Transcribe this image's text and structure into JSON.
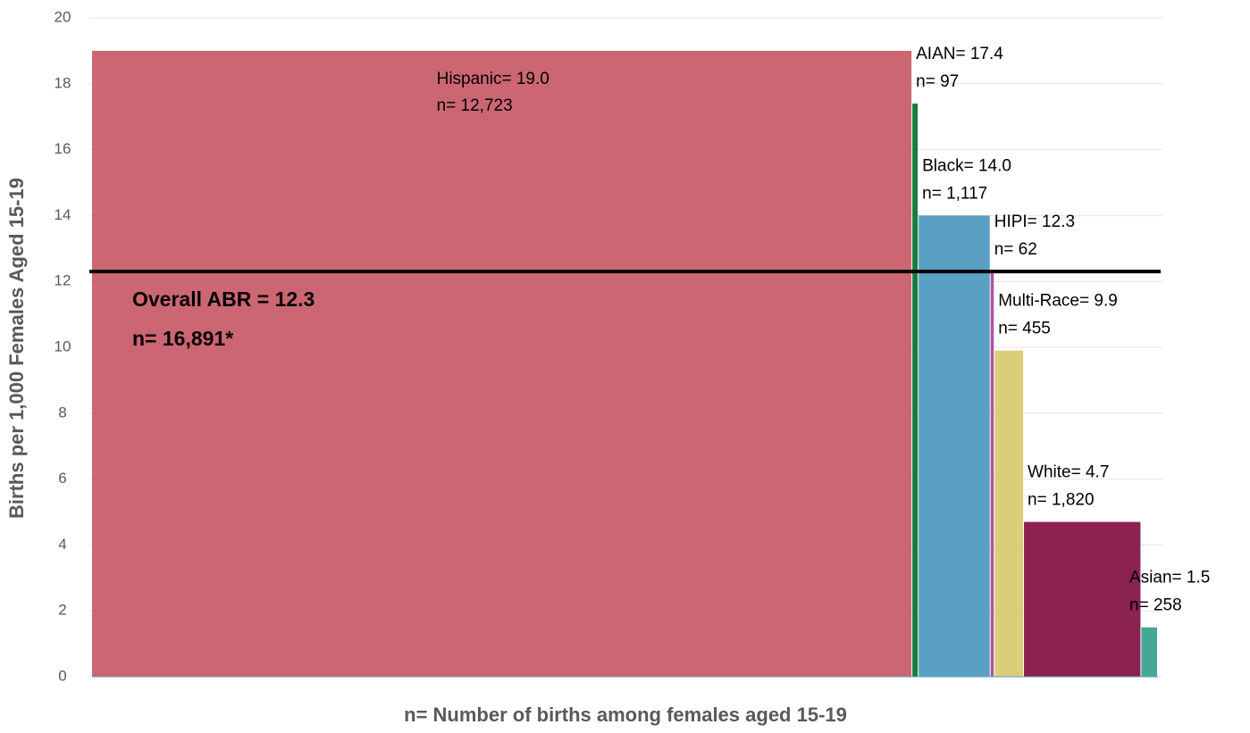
{
  "chart_data": {
    "type": "variable-width-bar",
    "y_label": "Births per 1,000 Females Aged 15-19",
    "x_label": "n= Number of births among females aged 15-19",
    "ylim": [
      0,
      20
    ],
    "yticks": [
      0,
      2,
      4,
      6,
      8,
      10,
      12,
      14,
      16,
      18,
      20
    ],
    "grid": true,
    "bars": [
      {
        "label": "Hispanic= 19.0",
        "value": 19.0,
        "n_label": "n= 12,723",
        "n": 12723,
        "color": "#cc6673"
      },
      {
        "label": "AIAN= 17.4",
        "value": 17.4,
        "n_label": "n= 97",
        "n": 97,
        "color": "#177d3c"
      },
      {
        "label": "Black= 14.0",
        "value": 14.0,
        "n_label": "n= 1,117",
        "n": 1117,
        "color": "#5aa0c5"
      },
      {
        "label": "HIPI= 12.3",
        "value": 12.3,
        "n_label": "n= 62",
        "n": 62,
        "color": "#b34fa6"
      },
      {
        "label": "Multi-Race= 9.9",
        "value": 9.9,
        "n_label": "n= 455",
        "n": 455,
        "color": "#dccd78"
      },
      {
        "label": "White= 4.7",
        "value": 4.7,
        "n_label": "n= 1,820",
        "n": 1820,
        "color": "#8b2252"
      },
      {
        "label": "Asian= 1.5",
        "value": 1.5,
        "n_label": "n= 258",
        "n": 258,
        "color": "#45a897"
      }
    ],
    "reference": {
      "value": 12.3,
      "label": "Overall ABR = 12.3",
      "n": 16891,
      "n_label": "n= 16,891*",
      "color": "#000000"
    }
  }
}
